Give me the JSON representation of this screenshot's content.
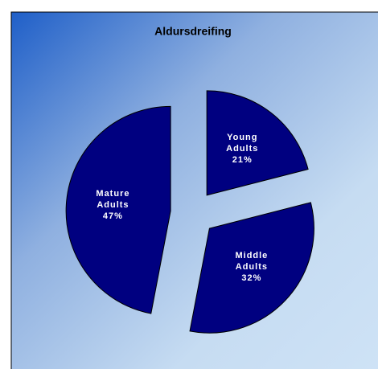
{
  "chart_data": {
    "type": "pie",
    "title": "Aldursdreifing",
    "categories": [
      "Young Adults",
      "Middle Adults",
      "Mature Adults"
    ],
    "values": [
      21,
      32,
      47
    ],
    "value_labels": [
      "21%",
      "32%",
      "47%"
    ],
    "color": "#000080"
  }
}
